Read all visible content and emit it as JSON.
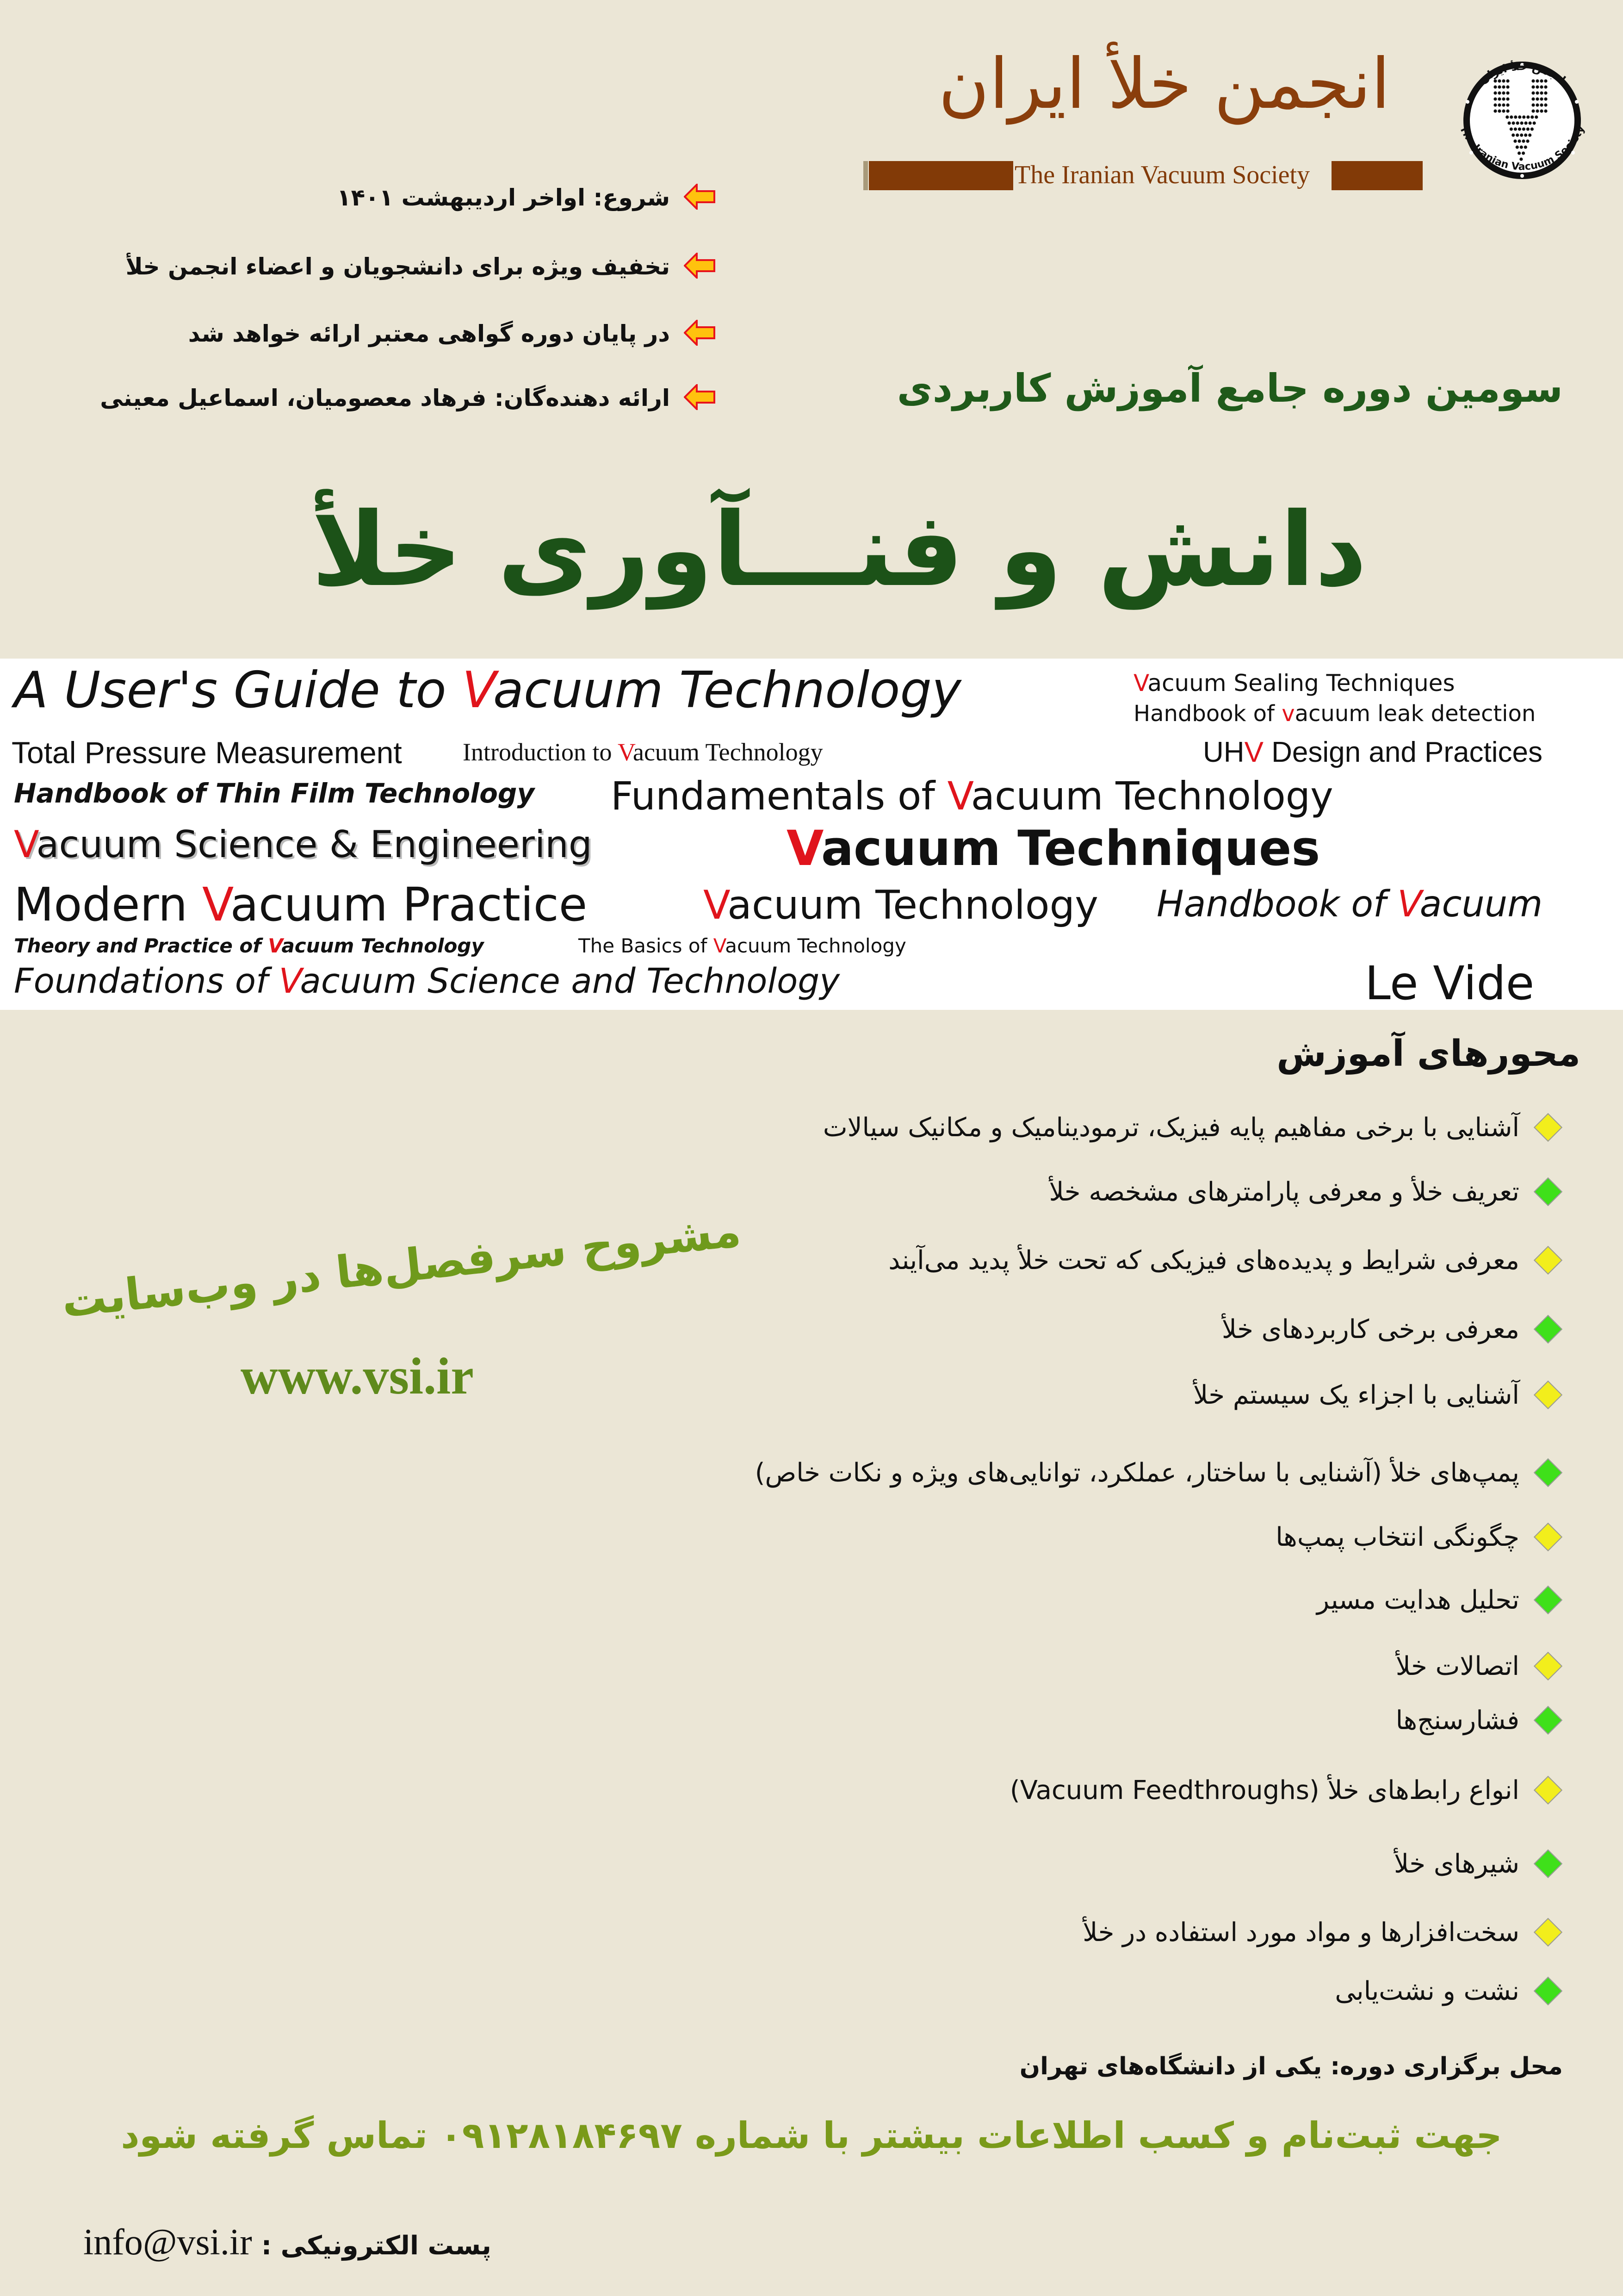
{
  "header": {
    "org_title_fa": "انجمن خلأ ایران",
    "org_title_en": "The Iranian Vacuum Society",
    "logo": {
      "text_fa": "انجمن خلأ ایران",
      "text_en": "The Iranian Vacuum Society",
      "icon": "dotted-v-logo"
    },
    "brand_color": "#823a07"
  },
  "info_bullets": [
    {
      "icon": "arrow-left-icon",
      "text": "شروع: اواخر اردیبهشت ۱۴۰۱"
    },
    {
      "icon": "arrow-left-icon",
      "text": "تخفیف ویژه برای دانشجویان و اعضاء انجمن خلأ"
    },
    {
      "icon": "arrow-left-icon",
      "text": "در پایان دوره گواهی معتبر ارائه خواهد شد"
    },
    {
      "icon": "arrow-left-icon",
      "text": "ارائه دهنده‌گان: فرهاد معصومیان، اسماعیل معینی"
    }
  ],
  "subtitle": "سومین دوره جامع آموزش کاربردی",
  "main_title": "دانش و فنـــآوری خلأ",
  "word_cloud": [
    {
      "pre": "A User's Guide to ",
      "v": "V",
      "post": "acuum Technology"
    },
    {
      "pre": "",
      "v": "V",
      "post": "acuum Sealing Techniques"
    },
    {
      "pre": "Introduction to ",
      "v": "V",
      "post": "acuum Technology"
    },
    {
      "pre": "Total Pressure Measurement",
      "v": "",
      "post": ""
    },
    {
      "pre": "Handbook of ",
      "v": "v",
      "post": "acuum leak detection"
    },
    {
      "pre": "Handbook of Thin Film Technology",
      "v": "",
      "post": ""
    },
    {
      "pre": "Fundamentals of ",
      "v": "V",
      "post": "acuum Technology"
    },
    {
      "pre": "UH",
      "v": "V",
      "post": " Design and Practices"
    },
    {
      "pre": "",
      "v": "V",
      "post": "acuum Science & Engineering"
    },
    {
      "pre": "",
      "v": "V",
      "post": "acuum Techniques"
    },
    {
      "pre": "Modern ",
      "v": "V",
      "post": "acuum Practice"
    },
    {
      "pre": "Handbook of ",
      "v": "V",
      "post": "acuum"
    },
    {
      "pre": "Theory and Practice of ",
      "v": "V",
      "post": "acuum Technology"
    },
    {
      "pre": "The Basics of ",
      "v": "V",
      "post": "acuum Technology"
    },
    {
      "pre": "",
      "v": "V",
      "post": "acuum Technology"
    },
    {
      "pre": "Foundations of ",
      "v": "V",
      "post": "acuum Science and Technology"
    },
    {
      "pre": "Le Vide",
      "v": "",
      "post": ""
    }
  ],
  "topics": {
    "heading": "محورهای آموزش",
    "items": [
      {
        "text": "آشنایی با برخی مفاهیم پایه فیزیک، ترمودینامیک و مکانیک سیالات",
        "color": "#f2ee1c"
      },
      {
        "text": "تعریف خلأ و معرفی پارامترهای مشخصه خلأ",
        "color": "#3fe01a"
      },
      {
        "text": "معرفی شرایط و پدیده‌های فیزیکی که تحت خلأ پدید می‌آیند",
        "color": "#f2ee1c"
      },
      {
        "text": "معرفی برخی کاربردهای خلأ",
        "color": "#3fe01a"
      },
      {
        "text": "آشنایی با اجزاء یک سیستم خلأ",
        "color": "#f2ee1c"
      },
      {
        "text": "پمپ‌های خلأ (آشنایی با ساختار، عملکرد، توانایی‌های ویژه و نکات خاص)",
        "color": "#3fe01a"
      },
      {
        "text": "چگونگی انتخاب پمپ‌ها",
        "color": "#f2ee1c"
      },
      {
        "text": "تحلیل هدایت مسیر",
        "color": "#3fe01a"
      },
      {
        "text": "اتصالات خلأ",
        "color": "#f2ee1c"
      },
      {
        "text": "فشارسنج‌ها",
        "color": "#3fe01a"
      },
      {
        "text": "انواع رابط‌های خلأ (Vacuum Feedthroughs)",
        "color": "#f2ee1c"
      },
      {
        "text": "شیرهای خلأ",
        "color": "#3fe01a"
      },
      {
        "text": "سخت‌افزارها و مواد مورد استفاده در خلأ",
        "color": "#f2ee1c"
      },
      {
        "text": "نشت و نشت‌یابی",
        "color": "#3fe01a"
      }
    ]
  },
  "details_link_text": "مشروح سرفصل‌ها در وب‌سایت",
  "website": "www.vsi.ir",
  "venue": "محل برگزاری دوره: یکی از دانشگاه‌های تهران",
  "contact": "جهت ثبت‌نام و کسب اطلاعات بیشتر با شماره ۰۹۱۲۸۱۸۴۶۹۷ تماس گرفته شود",
  "email": {
    "label": "پست الکترونیکی :",
    "value": "info@vsi.ir"
  }
}
